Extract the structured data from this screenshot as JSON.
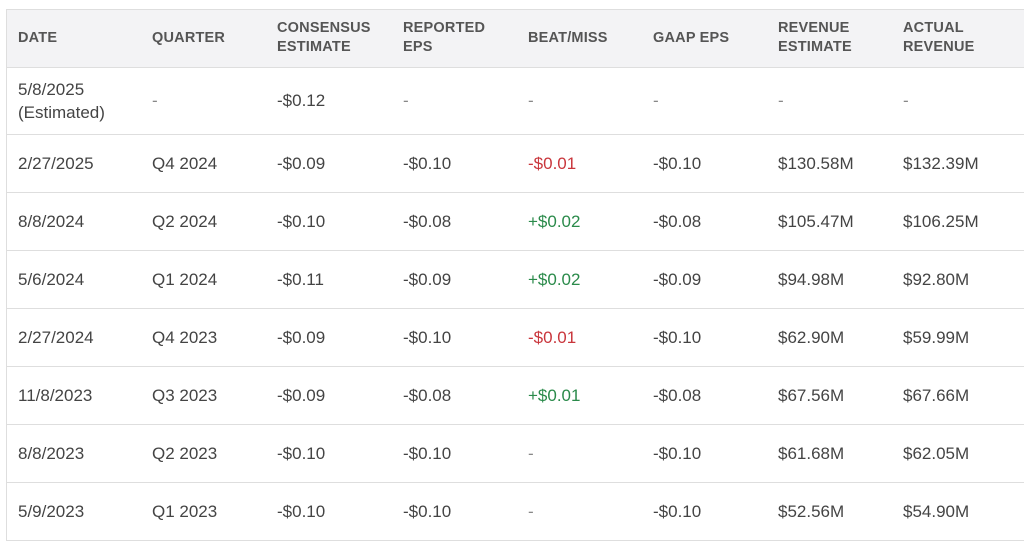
{
  "headers": {
    "date": "DATE",
    "quarter": "QUARTER",
    "consensus_l1": "CONSENSUS",
    "consensus_l2": "ESTIMATE",
    "reported_l1": "REPORTED",
    "reported_l2": "EPS",
    "beat_miss": "BEAT/MISS",
    "gaap_eps": "GAAP EPS",
    "rev_est_l1": "REVENUE",
    "rev_est_l2": "ESTIMATE",
    "act_rev_l1": "ACTUAL",
    "act_rev_l2": "REVENUE"
  },
  "rows": [
    {
      "date": "5/8/2025",
      "date_note": "(Estimated)",
      "quarter": "-",
      "consensus": "-$0.12",
      "reported": "-",
      "beat_miss": "-",
      "beat_status": "none",
      "gaap": "-",
      "rev_est": "-",
      "act_rev": "-"
    },
    {
      "date": "2/27/2025",
      "date_note": "",
      "quarter": "Q4 2024",
      "consensus": "-$0.09",
      "reported": "-$0.10",
      "beat_miss": "-$0.01",
      "beat_status": "miss",
      "gaap": "-$0.10",
      "rev_est": "$130.58M",
      "act_rev": "$132.39M"
    },
    {
      "date": "8/8/2024",
      "date_note": "",
      "quarter": "Q2 2024",
      "consensus": "-$0.10",
      "reported": "-$0.08",
      "beat_miss": "+$0.02",
      "beat_status": "beat",
      "gaap": "-$0.08",
      "rev_est": "$105.47M",
      "act_rev": "$106.25M"
    },
    {
      "date": "5/6/2024",
      "date_note": "",
      "quarter": "Q1 2024",
      "consensus": "-$0.11",
      "reported": "-$0.09",
      "beat_miss": "+$0.02",
      "beat_status": "beat",
      "gaap": "-$0.09",
      "rev_est": "$94.98M",
      "act_rev": "$92.80M"
    },
    {
      "date": "2/27/2024",
      "date_note": "",
      "quarter": "Q4 2023",
      "consensus": "-$0.09",
      "reported": "-$0.10",
      "beat_miss": "-$0.01",
      "beat_status": "miss",
      "gaap": "-$0.10",
      "rev_est": "$62.90M",
      "act_rev": "$59.99M"
    },
    {
      "date": "11/8/2023",
      "date_note": "",
      "quarter": "Q3 2023",
      "consensus": "-$0.09",
      "reported": "-$0.08",
      "beat_miss": "+$0.01",
      "beat_status": "beat",
      "gaap": "-$0.08",
      "rev_est": "$67.56M",
      "act_rev": "$67.66M"
    },
    {
      "date": "8/8/2023",
      "date_note": "",
      "quarter": "Q2 2023",
      "consensus": "-$0.10",
      "reported": "-$0.10",
      "beat_miss": "-",
      "beat_status": "none",
      "gaap": "-$0.10",
      "rev_est": "$61.68M",
      "act_rev": "$62.05M"
    },
    {
      "date": "5/9/2023",
      "date_note": "",
      "quarter": "Q1 2023",
      "consensus": "-$0.10",
      "reported": "-$0.10",
      "beat_miss": "-",
      "beat_status": "none",
      "gaap": "-$0.10",
      "rev_est": "$52.56M",
      "act_rev": "$54.90M"
    }
  ],
  "colors": {
    "beat": "#2a8a4a",
    "miss": "#c9363c",
    "header_bg": "#f3f3f5",
    "border": "#dedede"
  }
}
